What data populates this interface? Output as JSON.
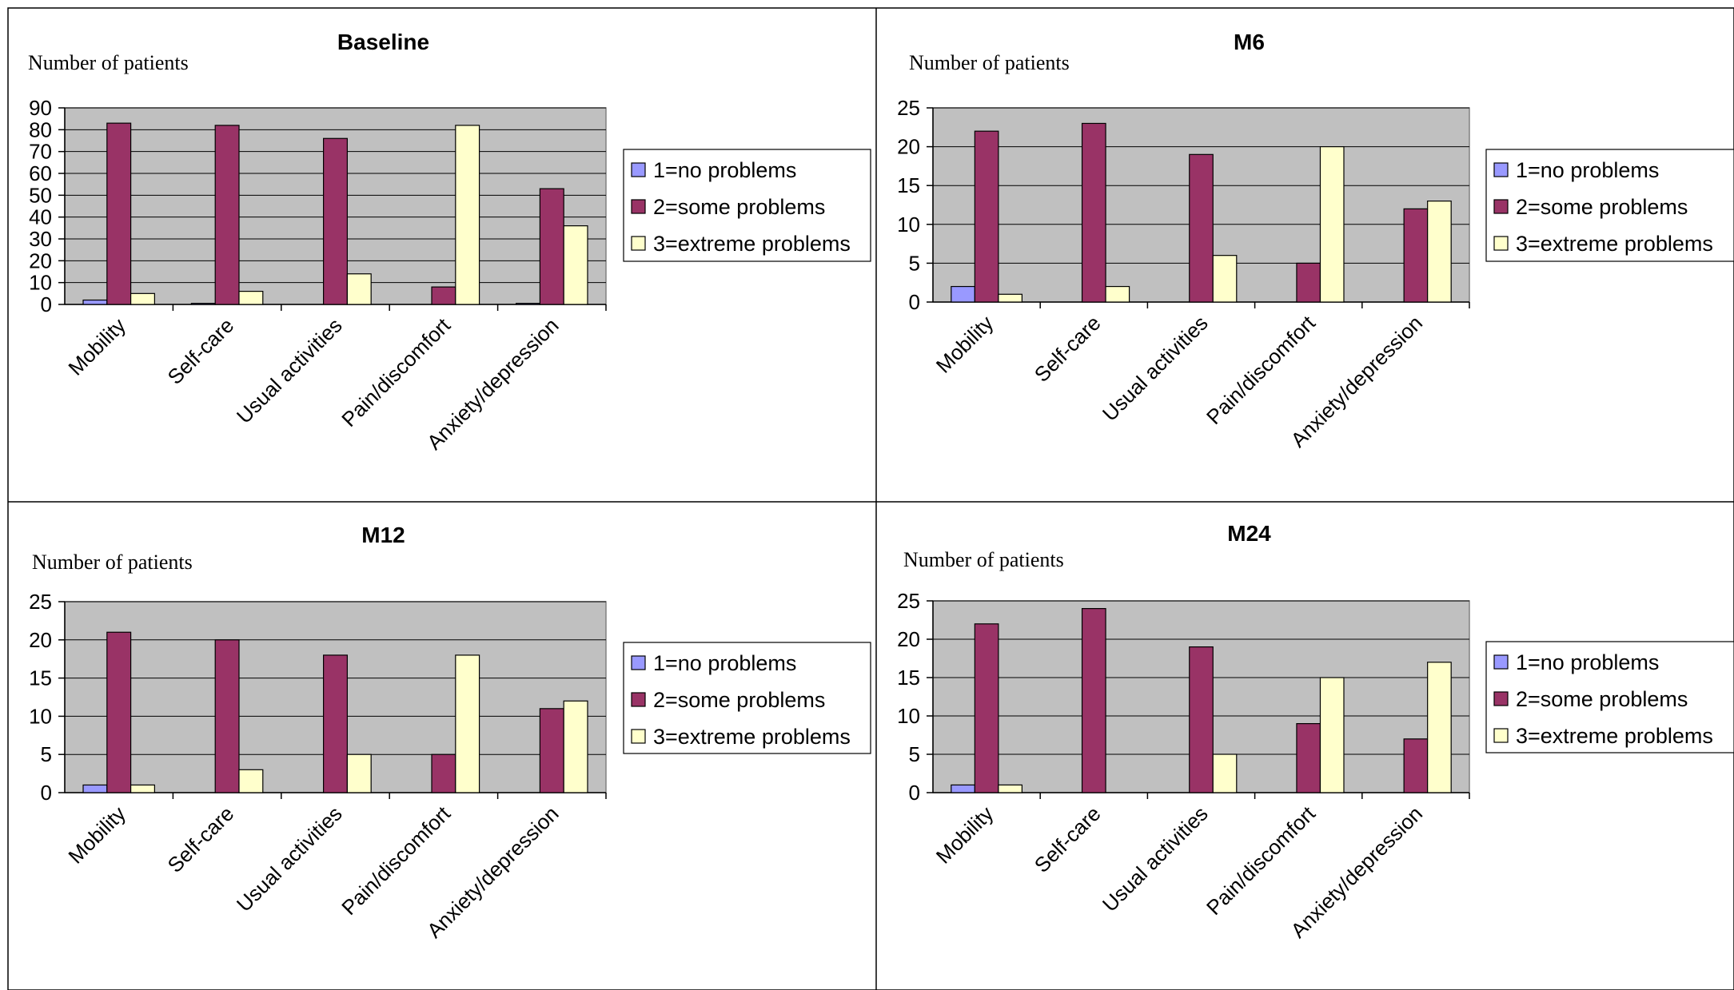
{
  "colors": {
    "plot_bg": "#C0C0C0",
    "frame": "#000000",
    "series": [
      "#9999FF",
      "#993366",
      "#FFFFCC"
    ]
  },
  "chart_data": [
    {
      "type": "bar",
      "title": "Baseline",
      "ylabel": "Number of patients",
      "xlabel": "",
      "categories": [
        "Mobility",
        "Self-care",
        "Usual activities",
        "Pain/discomfort",
        "Anxiety/depression"
      ],
      "ylim": [
        0,
        90
      ],
      "yticks": [
        0,
        10,
        20,
        30,
        40,
        50,
        60,
        70,
        80,
        90
      ],
      "grid": true,
      "legend": "right",
      "series": [
        {
          "name": "1=no problems",
          "values": [
            2,
            0.5,
            0,
            0,
            0.5
          ]
        },
        {
          "name": "2=some problems",
          "values": [
            83,
            82,
            76,
            8,
            53
          ]
        },
        {
          "name": "3=extreme problems",
          "values": [
            5,
            6,
            14,
            82,
            36
          ]
        }
      ]
    },
    {
      "type": "bar",
      "title": "M6",
      "ylabel": "Number of patients",
      "xlabel": "",
      "categories": [
        "Mobility",
        "Self-care",
        "Usual activities",
        "Pain/discomfort",
        "Anxiety/depression"
      ],
      "ylim": [
        0,
        25
      ],
      "yticks": [
        0,
        5,
        10,
        15,
        20,
        25
      ],
      "grid": true,
      "legend": "right",
      "series": [
        {
          "name": "1=no problems",
          "values": [
            2,
            0,
            0,
            0,
            0
          ]
        },
        {
          "name": "2=some problems",
          "values": [
            22,
            23,
            19,
            5,
            12
          ]
        },
        {
          "name": "3=extreme problems",
          "values": [
            1,
            2,
            6,
            20,
            13
          ]
        }
      ]
    },
    {
      "type": "bar",
      "title": "M12",
      "ylabel": "Number of patients",
      "xlabel": "",
      "categories": [
        "Mobility",
        "Self-care",
        "Usual activities",
        "Pain/discomfort",
        "Anxiety/depression"
      ],
      "ylim": [
        0,
        25
      ],
      "yticks": [
        0,
        5,
        10,
        15,
        20,
        25
      ],
      "grid": true,
      "legend": "right",
      "series": [
        {
          "name": "1=no problems",
          "values": [
            1,
            0,
            0,
            0,
            0
          ]
        },
        {
          "name": "2=some problems",
          "values": [
            21,
            20,
            18,
            5,
            11
          ]
        },
        {
          "name": "3=extreme problems",
          "values": [
            1,
            3,
            5,
            18,
            12
          ]
        }
      ]
    },
    {
      "type": "bar",
      "title": "M24",
      "ylabel": "Number of patients",
      "xlabel": "",
      "categories": [
        "Mobility",
        "Self-care",
        "Usual activities",
        "Pain/discomfort",
        "Anxiety/depression"
      ],
      "ylim": [
        0,
        25
      ],
      "yticks": [
        0,
        5,
        10,
        15,
        20,
        25
      ],
      "grid": true,
      "legend": "right",
      "series": [
        {
          "name": "1=no problems",
          "values": [
            1,
            0,
            0,
            0,
            0
          ]
        },
        {
          "name": "2=some problems",
          "values": [
            22,
            24,
            19,
            9,
            7
          ]
        },
        {
          "name": "3=extreme problems",
          "values": [
            1,
            0,
            5,
            15,
            17
          ]
        }
      ]
    }
  ]
}
